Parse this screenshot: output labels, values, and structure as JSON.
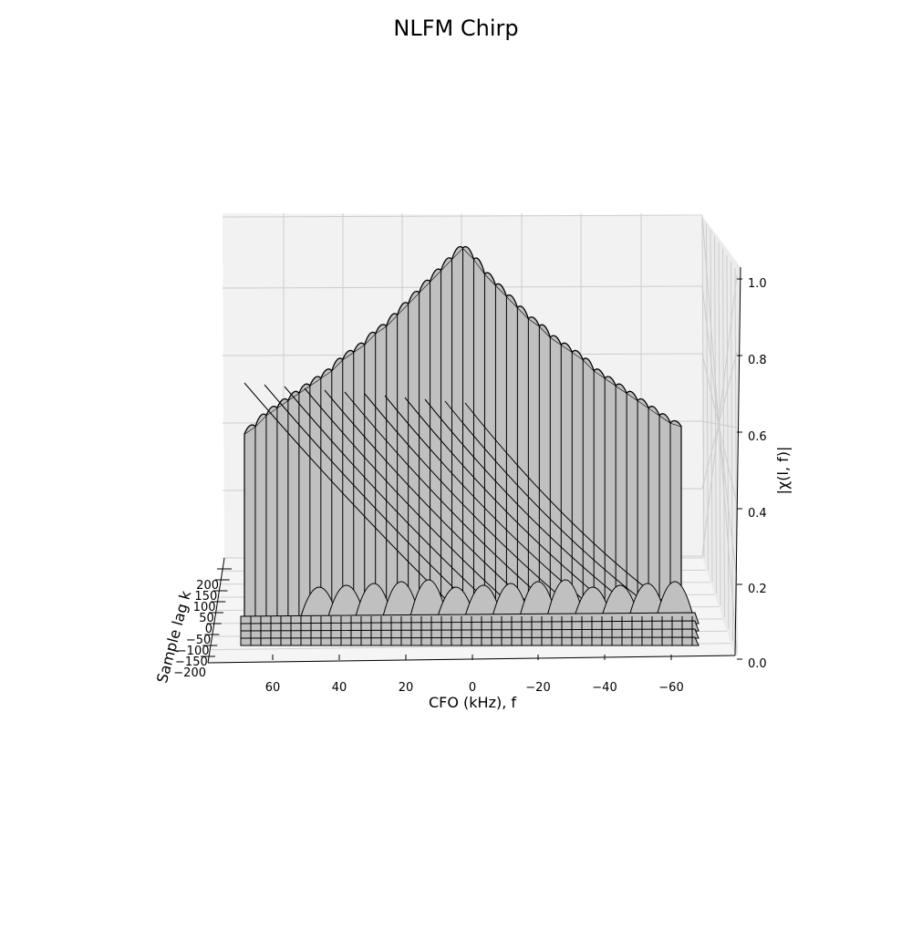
{
  "chart_data": {
    "type": "surface",
    "title": "NLFM Chirp",
    "xlabel": "CFO (kHz), f",
    "ylabel": "Sample lag k",
    "zlabel": "|χ(l, f)|",
    "x_ticks": [
      "60",
      "40",
      "20",
      "0",
      "−20",
      "−40",
      "−60"
    ],
    "y_ticks": [
      "200",
      "150",
      "100",
      "50",
      "0",
      "−50",
      "−100",
      "−150",
      "−200"
    ],
    "z_ticks": [
      "0.0",
      "0.2",
      "0.4",
      "0.6",
      "0.8",
      "1.0"
    ],
    "x_range": [
      -70,
      70
    ],
    "y_range": [
      -200,
      200
    ],
    "z_range": [
      0,
      1
    ],
    "grid": true,
    "colors": {
      "surface_face": "#c0c0c0",
      "surface_edge": "#000000",
      "pane": "#f2f2f2"
    },
    "zero_lag_cut": {
      "description_hidden": false,
      "cfo_khz": [
        70,
        66.5,
        63,
        59.5,
        56,
        52.5,
        49,
        45.5,
        42,
        38.5,
        35,
        31.5,
        28,
        24.5,
        21,
        17.5,
        14,
        10.5,
        7,
        3.5,
        0,
        -3.5,
        -7,
        -10.5,
        -14,
        -17.5,
        -21,
        -24.5,
        -28,
        -31.5,
        -35,
        -38.5,
        -42,
        -45.5,
        -49,
        -52.5,
        -56,
        -59.5,
        -63,
        -66.5,
        -70
      ],
      "magnitude": [
        0.5,
        0.52,
        0.55,
        0.57,
        0.59,
        0.61,
        0.63,
        0.65,
        0.67,
        0.7,
        0.72,
        0.74,
        0.77,
        0.79,
        0.82,
        0.85,
        0.88,
        0.91,
        0.94,
        0.97,
        1.0,
        0.97,
        0.93,
        0.9,
        0.87,
        0.84,
        0.81,
        0.79,
        0.76,
        0.74,
        0.72,
        0.7,
        0.67,
        0.65,
        0.63,
        0.61,
        0.59,
        0.57,
        0.55,
        0.53,
        0.52
      ]
    }
  }
}
